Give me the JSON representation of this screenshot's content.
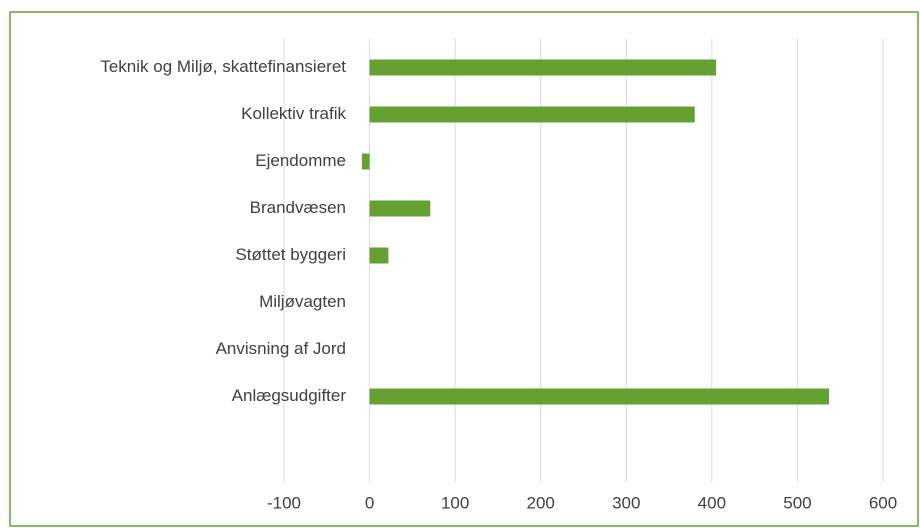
{
  "chart_data": {
    "type": "bar",
    "orientation": "horizontal",
    "categories": [
      "Teknik og Miljø, skattefinansieret",
      "Kollektiv trafik",
      "Ejendomme",
      "Brandvæsen",
      "Støttet byggeri",
      "Miljøvagten",
      "Anvisning af Jord",
      "Anlægsudgifter",
      null
    ],
    "values": [
      405,
      380,
      -9,
      71,
      22,
      0,
      0,
      537,
      null
    ],
    "color": "#64a032",
    "xlim": [
      -100,
      600
    ],
    "xticks": [
      -100,
      0,
      100,
      200,
      300,
      400,
      500,
      600
    ],
    "grid": true
  }
}
